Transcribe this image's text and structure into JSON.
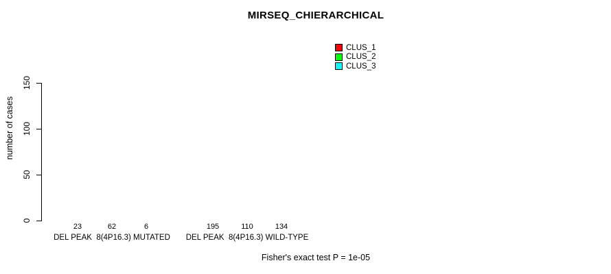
{
  "chart_data": {
    "type": "bar",
    "title": "MIRSEQ_CHIERARCHICAL",
    "ylabel": "number of cases",
    "xlabel": "",
    "categories": [
      "DEL PEAK  8(4P16.3) MUTATED",
      "DEL PEAK  8(4P16.3) WILD-TYPE"
    ],
    "series": [
      {
        "name": "CLUS_1",
        "color": "#FF0000",
        "values": [
          23,
          195
        ]
      },
      {
        "name": "CLUS_2",
        "color": "#00FF00",
        "values": [
          62,
          110
        ]
      },
      {
        "name": "CLUS_3",
        "color": "#00FFFF",
        "values": [
          6,
          134
        ]
      }
    ],
    "bar_value_labels": [
      [
        23,
        62,
        6
      ],
      [
        195,
        110,
        134
      ]
    ],
    "yticks": [
      0,
      50,
      100,
      150
    ],
    "ylim": [
      0,
      150
    ],
    "grid": false,
    "legend_position": "top-right",
    "annotation": "Fisher's exact test P = 1e-05",
    "colors": {
      "background": "#FFFFFF",
      "axis": "#000000",
      "text": "#000000"
    }
  }
}
